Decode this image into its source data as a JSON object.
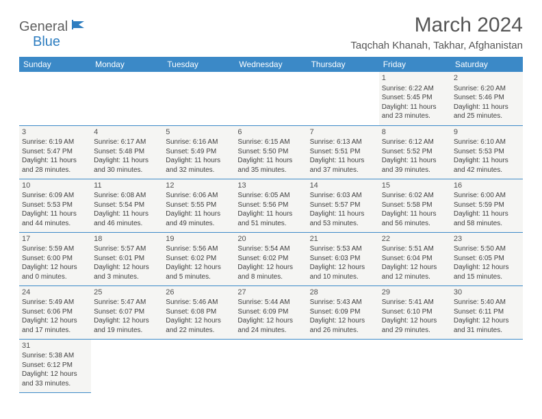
{
  "logo": {
    "part1": "General",
    "part2": "Blue"
  },
  "title": "March 2024",
  "location": "Taqchah Khanah, Takhar, Afghanistan",
  "colors": {
    "header_bg": "#3b89c7",
    "header_text": "#ffffff",
    "cell_bg": "#f5f5f3",
    "border": "#3b89c7",
    "text": "#404040",
    "logo_gray": "#606060",
    "logo_blue": "#2d7dc0"
  },
  "weekdays": [
    "Sunday",
    "Monday",
    "Tuesday",
    "Wednesday",
    "Thursday",
    "Friday",
    "Saturday"
  ],
  "weeks": [
    [
      null,
      null,
      null,
      null,
      null,
      {
        "n": "1",
        "sr": "Sunrise: 6:22 AM",
        "ss": "Sunset: 5:45 PM",
        "d1": "Daylight: 11 hours",
        "d2": "and 23 minutes."
      },
      {
        "n": "2",
        "sr": "Sunrise: 6:20 AM",
        "ss": "Sunset: 5:46 PM",
        "d1": "Daylight: 11 hours",
        "d2": "and 25 minutes."
      }
    ],
    [
      {
        "n": "3",
        "sr": "Sunrise: 6:19 AM",
        "ss": "Sunset: 5:47 PM",
        "d1": "Daylight: 11 hours",
        "d2": "and 28 minutes."
      },
      {
        "n": "4",
        "sr": "Sunrise: 6:17 AM",
        "ss": "Sunset: 5:48 PM",
        "d1": "Daylight: 11 hours",
        "d2": "and 30 minutes."
      },
      {
        "n": "5",
        "sr": "Sunrise: 6:16 AM",
        "ss": "Sunset: 5:49 PM",
        "d1": "Daylight: 11 hours",
        "d2": "and 32 minutes."
      },
      {
        "n": "6",
        "sr": "Sunrise: 6:15 AM",
        "ss": "Sunset: 5:50 PM",
        "d1": "Daylight: 11 hours",
        "d2": "and 35 minutes."
      },
      {
        "n": "7",
        "sr": "Sunrise: 6:13 AM",
        "ss": "Sunset: 5:51 PM",
        "d1": "Daylight: 11 hours",
        "d2": "and 37 minutes."
      },
      {
        "n": "8",
        "sr": "Sunrise: 6:12 AM",
        "ss": "Sunset: 5:52 PM",
        "d1": "Daylight: 11 hours",
        "d2": "and 39 minutes."
      },
      {
        "n": "9",
        "sr": "Sunrise: 6:10 AM",
        "ss": "Sunset: 5:53 PM",
        "d1": "Daylight: 11 hours",
        "d2": "and 42 minutes."
      }
    ],
    [
      {
        "n": "10",
        "sr": "Sunrise: 6:09 AM",
        "ss": "Sunset: 5:53 PM",
        "d1": "Daylight: 11 hours",
        "d2": "and 44 minutes."
      },
      {
        "n": "11",
        "sr": "Sunrise: 6:08 AM",
        "ss": "Sunset: 5:54 PM",
        "d1": "Daylight: 11 hours",
        "d2": "and 46 minutes."
      },
      {
        "n": "12",
        "sr": "Sunrise: 6:06 AM",
        "ss": "Sunset: 5:55 PM",
        "d1": "Daylight: 11 hours",
        "d2": "and 49 minutes."
      },
      {
        "n": "13",
        "sr": "Sunrise: 6:05 AM",
        "ss": "Sunset: 5:56 PM",
        "d1": "Daylight: 11 hours",
        "d2": "and 51 minutes."
      },
      {
        "n": "14",
        "sr": "Sunrise: 6:03 AM",
        "ss": "Sunset: 5:57 PM",
        "d1": "Daylight: 11 hours",
        "d2": "and 53 minutes."
      },
      {
        "n": "15",
        "sr": "Sunrise: 6:02 AM",
        "ss": "Sunset: 5:58 PM",
        "d1": "Daylight: 11 hours",
        "d2": "and 56 minutes."
      },
      {
        "n": "16",
        "sr": "Sunrise: 6:00 AM",
        "ss": "Sunset: 5:59 PM",
        "d1": "Daylight: 11 hours",
        "d2": "and 58 minutes."
      }
    ],
    [
      {
        "n": "17",
        "sr": "Sunrise: 5:59 AM",
        "ss": "Sunset: 6:00 PM",
        "d1": "Daylight: 12 hours",
        "d2": "and 0 minutes."
      },
      {
        "n": "18",
        "sr": "Sunrise: 5:57 AM",
        "ss": "Sunset: 6:01 PM",
        "d1": "Daylight: 12 hours",
        "d2": "and 3 minutes."
      },
      {
        "n": "19",
        "sr": "Sunrise: 5:56 AM",
        "ss": "Sunset: 6:02 PM",
        "d1": "Daylight: 12 hours",
        "d2": "and 5 minutes."
      },
      {
        "n": "20",
        "sr": "Sunrise: 5:54 AM",
        "ss": "Sunset: 6:02 PM",
        "d1": "Daylight: 12 hours",
        "d2": "and 8 minutes."
      },
      {
        "n": "21",
        "sr": "Sunrise: 5:53 AM",
        "ss": "Sunset: 6:03 PM",
        "d1": "Daylight: 12 hours",
        "d2": "and 10 minutes."
      },
      {
        "n": "22",
        "sr": "Sunrise: 5:51 AM",
        "ss": "Sunset: 6:04 PM",
        "d1": "Daylight: 12 hours",
        "d2": "and 12 minutes."
      },
      {
        "n": "23",
        "sr": "Sunrise: 5:50 AM",
        "ss": "Sunset: 6:05 PM",
        "d1": "Daylight: 12 hours",
        "d2": "and 15 minutes."
      }
    ],
    [
      {
        "n": "24",
        "sr": "Sunrise: 5:49 AM",
        "ss": "Sunset: 6:06 PM",
        "d1": "Daylight: 12 hours",
        "d2": "and 17 minutes."
      },
      {
        "n": "25",
        "sr": "Sunrise: 5:47 AM",
        "ss": "Sunset: 6:07 PM",
        "d1": "Daylight: 12 hours",
        "d2": "and 19 minutes."
      },
      {
        "n": "26",
        "sr": "Sunrise: 5:46 AM",
        "ss": "Sunset: 6:08 PM",
        "d1": "Daylight: 12 hours",
        "d2": "and 22 minutes."
      },
      {
        "n": "27",
        "sr": "Sunrise: 5:44 AM",
        "ss": "Sunset: 6:09 PM",
        "d1": "Daylight: 12 hours",
        "d2": "and 24 minutes."
      },
      {
        "n": "28",
        "sr": "Sunrise: 5:43 AM",
        "ss": "Sunset: 6:09 PM",
        "d1": "Daylight: 12 hours",
        "d2": "and 26 minutes."
      },
      {
        "n": "29",
        "sr": "Sunrise: 5:41 AM",
        "ss": "Sunset: 6:10 PM",
        "d1": "Daylight: 12 hours",
        "d2": "and 29 minutes."
      },
      {
        "n": "30",
        "sr": "Sunrise: 5:40 AM",
        "ss": "Sunset: 6:11 PM",
        "d1": "Daylight: 12 hours",
        "d2": "and 31 minutes."
      }
    ],
    [
      {
        "n": "31",
        "sr": "Sunrise: 5:38 AM",
        "ss": "Sunset: 6:12 PM",
        "d1": "Daylight: 12 hours",
        "d2": "and 33 minutes."
      },
      null,
      null,
      null,
      null,
      null,
      null
    ]
  ]
}
